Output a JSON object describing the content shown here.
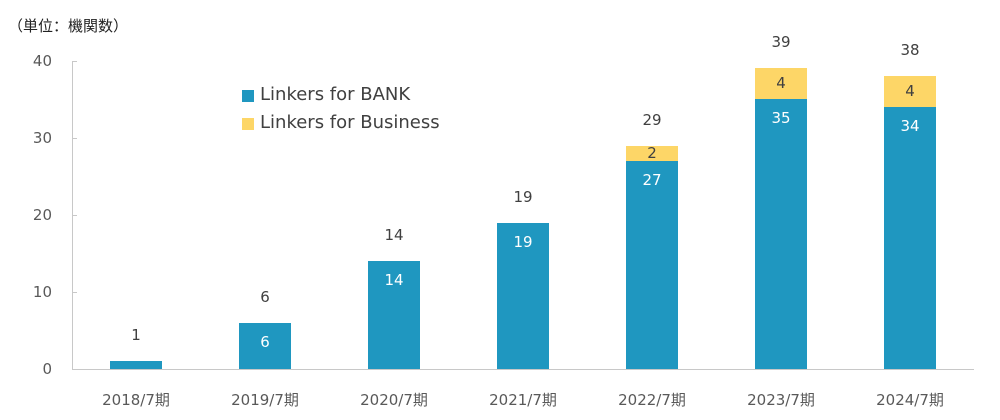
{
  "chart_data": {
    "type": "bar",
    "stacked": true,
    "title": "",
    "unit_label": "（単位：機関数）",
    "xlabel": "",
    "ylabel": "（単位：機関数）",
    "ylim": [
      0,
      40
    ],
    "yticks": [
      "0",
      "10",
      "20",
      "30",
      "40"
    ],
    "grid": false,
    "legend_position": "upper-left inside",
    "categories": [
      "2018/7期",
      "2019/7期",
      "2020/7期",
      "2021/7期",
      "2022/7期",
      "2023/7期",
      "2024/7期"
    ],
    "series": [
      {
        "name": "Linkers for BANK",
        "color": "#1f97c0",
        "values": [
          1,
          6,
          14,
          19,
          27,
          35,
          34
        ]
      },
      {
        "name": "Linkers for Business",
        "color": "#fdd667",
        "values": [
          0,
          0,
          0,
          0,
          2,
          4,
          4
        ]
      }
    ],
    "totals": [
      1,
      6,
      14,
      19,
      29,
      39,
      38
    ],
    "segment_labels": {
      "bank": [
        "",
        "6",
        "14",
        "19",
        "27",
        "35",
        "34"
      ],
      "business": [
        "",
        "",
        "",
        "",
        "2",
        "4",
        "4"
      ]
    }
  },
  "legend": [
    {
      "label": "Linkers for BANK",
      "color": "#1f97c0"
    },
    {
      "label": "Linkers for Business",
      "color": "#fdd667"
    }
  ]
}
